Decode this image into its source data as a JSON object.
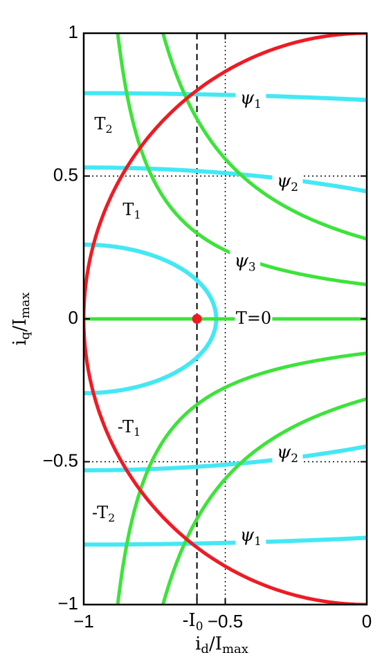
{
  "chart_data": {
    "type": "line",
    "title": "",
    "xlabel": "i",
    "xlabel_sub": "d",
    "xlabel_tail": "/I",
    "xlabel_tail_sub": "max",
    "ylabel": "i",
    "ylabel_sub": "q",
    "ylabel_tail": "/I",
    "ylabel_tail_sub": "max",
    "xlim": [
      -1,
      0
    ],
    "ylim": [
      -1,
      1
    ],
    "x_ticks": [
      {
        "value": -1,
        "label": "−1"
      },
      {
        "value": -0.5,
        "label": "−0.5"
      },
      {
        "value": 0,
        "label": "0"
      }
    ],
    "x_special_tick": {
      "value": -0.6,
      "label": "-I",
      "sub": "0"
    },
    "y_ticks": [
      {
        "value": 1,
        "label": "1"
      },
      {
        "value": 0.5,
        "label": "0.5"
      },
      {
        "value": 0,
        "label": "0"
      },
      {
        "value": -0.5,
        "label": "−0.5"
      },
      {
        "value": -1,
        "label": "−1"
      }
    ],
    "colors": {
      "current_limit": "#ee1b24",
      "torque": "#3de33a",
      "flux": "#44e8f4",
      "point": "#ee1b24",
      "axes": "#000000"
    },
    "reference_lines": [
      {
        "kind": "dashed-vertical",
        "x": -0.6
      },
      {
        "kind": "dotted-vertical",
        "x": -0.5
      },
      {
        "kind": "dotted-horizontal",
        "y": 0.5
      },
      {
        "kind": "dotted-horizontal",
        "y": -0.5
      }
    ],
    "current_limit_circle": {
      "radius": 1,
      "center": [
        0,
        0
      ]
    },
    "point": {
      "x": -0.6,
      "y": 0
    },
    "torque_curves": [
      {
        "label": "T",
        "sub": "2",
        "c": 0.28,
        "sign": 1
      },
      {
        "label": "T",
        "sub": "1",
        "c": 0.12,
        "sign": 1
      },
      {
        "label": "T=0",
        "sub": "",
        "c": 0,
        "sign": 1
      },
      {
        "label": "-T",
        "sub": "1",
        "c": 0.12,
        "sign": -1
      },
      {
        "label": "-T",
        "sub": "2",
        "c": 0.28,
        "sign": -1
      }
    ],
    "flux_curves": [
      {
        "label": "ψ",
        "sub": "1",
        "psi": 0.79,
        "lq_over_ld": 5.2
      },
      {
        "label": "ψ",
        "sub": "2",
        "psi": 0.53,
        "lq_over_ld": 3.5
      },
      {
        "label": "ψ",
        "sub": "3",
        "psi": 0.26,
        "lq_over_ld": 1.8
      }
    ],
    "torque_label_positions": [
      {
        "x": -0.93,
        "y": 0.68
      },
      {
        "x": -0.83,
        "y": 0.38
      },
      {
        "x": -0.4,
        "y": 0.0
      },
      {
        "x": -0.84,
        "y": -0.38
      },
      {
        "x": -0.93,
        "y": -0.68
      }
    ],
    "flux_label_positions": [
      {
        "x": -0.41,
        "y": 0.77
      },
      {
        "x": -0.28,
        "y": 0.48
      },
      {
        "x": -0.43,
        "y": 0.2
      },
      {
        "x": -0.28,
        "y": -0.47
      },
      {
        "x": -0.41,
        "y": -0.76
      }
    ]
  }
}
